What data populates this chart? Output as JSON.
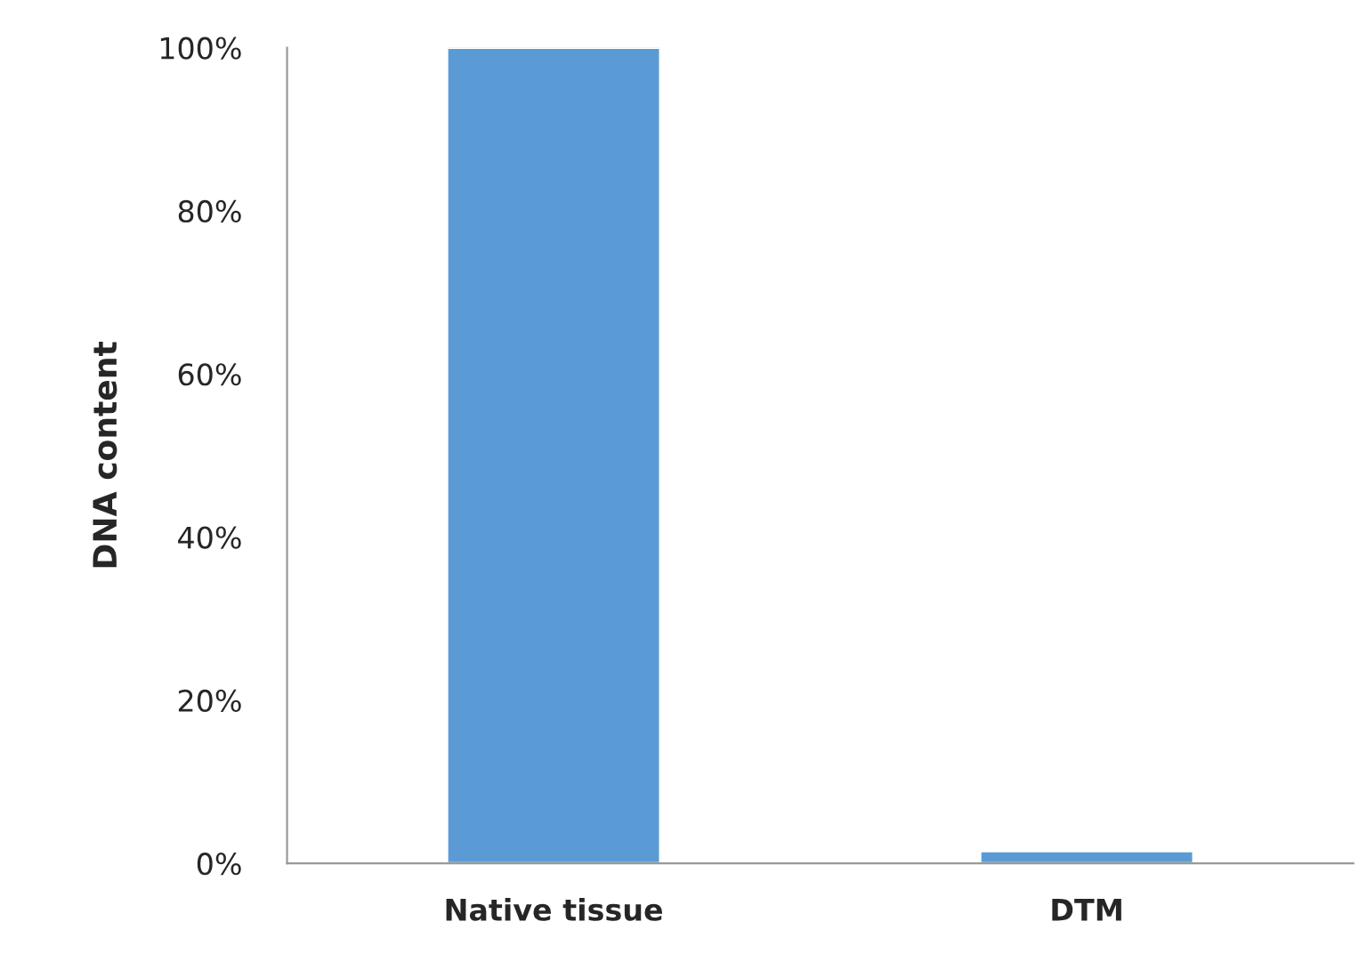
{
  "chart_data": {
    "type": "bar",
    "ylabel": "DNA content",
    "categories": [
      "Native tissue",
      "DTM"
    ],
    "values": [
      100,
      1.5
    ],
    "color": "#5b9bd5",
    "ylim": [
      0,
      100
    ],
    "yticks": [
      {
        "value": 0,
        "label": "0%"
      },
      {
        "value": 20,
        "label": "20%"
      },
      {
        "value": 40,
        "label": "40%"
      },
      {
        "value": 60,
        "label": "60%"
      },
      {
        "value": 80,
        "label": "80%"
      },
      {
        "value": 100,
        "label": "100%"
      }
    ],
    "grid": false
  }
}
